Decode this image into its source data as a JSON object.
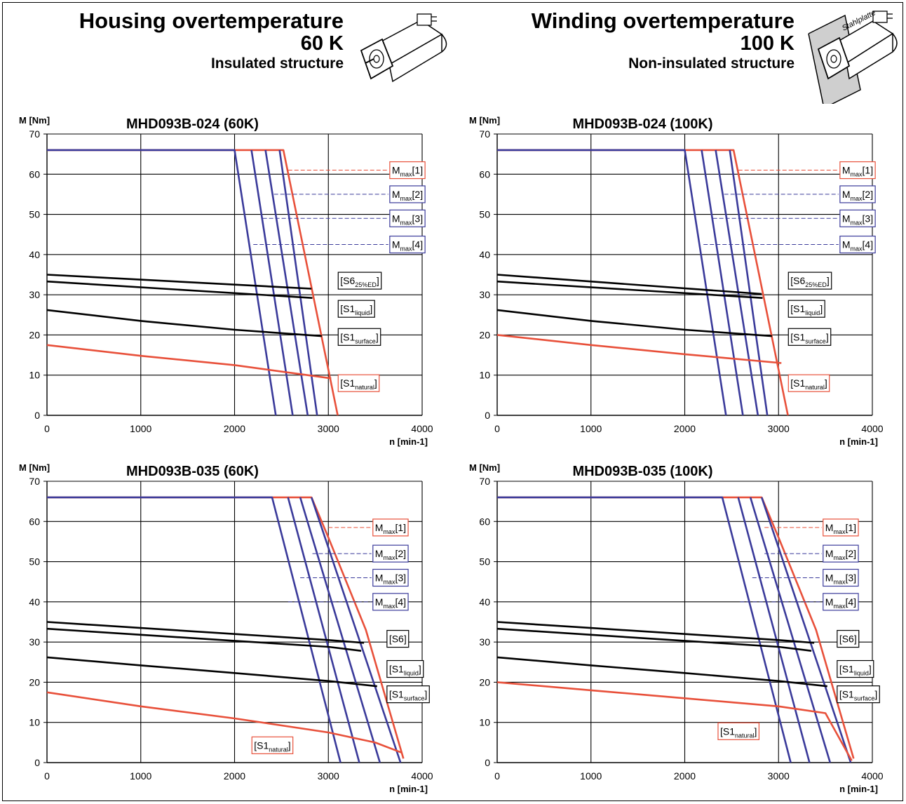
{
  "headers": {
    "left": {
      "title": "Housing overtemperature",
      "value": "60 K",
      "subtitle": "Insulated structure"
    },
    "right": {
      "title": "Winding overtemperature",
      "value": "100 K",
      "subtitle": "Non-insulated structure",
      "plate_label": "Stahlplatte"
    }
  },
  "colors": {
    "red": "#e8503a",
    "blue": "#3a3a9a",
    "black": "#000000",
    "grid": "#000000"
  },
  "chart_data": [
    {
      "type": "line",
      "title": "MHD093B-024 (60K)",
      "ylabel": "M [Nm]",
      "xlabel": "n [min-1]",
      "xlim": [
        0,
        4000
      ],
      "ylim": [
        0,
        70
      ],
      "xticks": [
        "0",
        "1000",
        "2000",
        "3000",
        "4000"
      ],
      "yticks": [
        "0",
        "10",
        "20",
        "30",
        "40",
        "50",
        "60",
        "70"
      ],
      "grid": true,
      "series": [
        {
          "color": "red",
          "points": [
            [
              0,
              66
            ],
            [
              2520,
              66
            ],
            [
              3100,
              0
            ]
          ]
        },
        {
          "color": "blue",
          "points": [
            [
              0,
              66
            ],
            [
              2000,
              66
            ],
            [
              2440,
              0
            ]
          ]
        },
        {
          "color": "blue",
          "points": [
            [
              2180,
              66
            ],
            [
              2620,
              0
            ]
          ]
        },
        {
          "color": "blue",
          "points": [
            [
              2330,
              66
            ],
            [
              2780,
              0
            ]
          ]
        },
        {
          "color": "blue",
          "points": [
            [
              2480,
              66
            ],
            [
              2880,
              0
            ]
          ]
        },
        {
          "color": "black",
          "points": [
            [
              0,
              35
            ],
            [
              2820,
              31.5
            ]
          ]
        },
        {
          "color": "black",
          "points": [
            [
              0,
              33.3
            ],
            [
              2830,
              29.2
            ]
          ]
        },
        {
          "color": "black",
          "points": [
            [
              0,
              26.2
            ],
            [
              1000,
              23.5
            ],
            [
              2000,
              21.3
            ],
            [
              2930,
              19.7
            ]
          ]
        },
        {
          "color": "red",
          "points": [
            [
              0,
              17.5
            ],
            [
              1000,
              14.8
            ],
            [
              2000,
              12.5
            ],
            [
              3030,
              9.2
            ]
          ]
        }
      ],
      "labels": [
        {
          "main": "M",
          "sub": "max",
          "suffix": "[1]",
          "color": "red",
          "x": 3640,
          "y": 61,
          "lead_from": 2570,
          "lead_y": 61
        },
        {
          "main": "M",
          "sub": "max",
          "suffix": "[2]",
          "color": "blue",
          "x": 3640,
          "y": 55,
          "lead_from": 2420,
          "lead_y": 55
        },
        {
          "main": "M",
          "sub": "max",
          "suffix": "[3]",
          "color": "blue",
          "x": 3640,
          "y": 49,
          "lead_from": 2300,
          "lead_y": 49
        },
        {
          "main": "M",
          "sub": "max",
          "suffix": "[4]",
          "color": "blue",
          "x": 3640,
          "y": 42.5,
          "lead_from": 2200,
          "lead_y": 42.5
        },
        {
          "main": "[S6",
          "sub": "25%ED",
          "suffix": "]",
          "color": "black",
          "x": 3090,
          "y": 33.5
        },
        {
          "main": "[S1",
          "sub": "liquid",
          "suffix": "]",
          "color": "black",
          "x": 3090,
          "y": 26.5
        },
        {
          "main": "[S1",
          "sub": "surface",
          "suffix": "]",
          "color": "black",
          "x": 3090,
          "y": 19.5
        },
        {
          "main": "[S1",
          "sub": "natural",
          "suffix": "]",
          "color": "red",
          "x": 3090,
          "y": 8
        }
      ]
    },
    {
      "type": "line",
      "title": "MHD093B-024 (100K)",
      "ylabel": "M [Nm]",
      "xlabel": "n [min-1]",
      "xlim": [
        0,
        4000
      ],
      "ylim": [
        0,
        70
      ],
      "xticks": [
        "0",
        "1000",
        "2000",
        "3000",
        "4000"
      ],
      "yticks": [
        "0",
        "10",
        "20",
        "30",
        "40",
        "50",
        "60",
        "70"
      ],
      "grid": true,
      "series": [
        {
          "color": "red",
          "points": [
            [
              0,
              66
            ],
            [
              2520,
              66
            ],
            [
              3100,
              0
            ]
          ]
        },
        {
          "color": "blue",
          "points": [
            [
              0,
              66
            ],
            [
              2000,
              66
            ],
            [
              2440,
              0
            ]
          ]
        },
        {
          "color": "blue",
          "points": [
            [
              2180,
              66
            ],
            [
              2620,
              0
            ]
          ]
        },
        {
          "color": "blue",
          "points": [
            [
              2330,
              66
            ],
            [
              2780,
              0
            ]
          ]
        },
        {
          "color": "blue",
          "points": [
            [
              2480,
              66
            ],
            [
              2880,
              0
            ]
          ]
        },
        {
          "color": "black",
          "points": [
            [
              0,
              35
            ],
            [
              2820,
              30.2
            ]
          ]
        },
        {
          "color": "black",
          "points": [
            [
              0,
              33.3
            ],
            [
              2830,
              29.2
            ]
          ]
        },
        {
          "color": "black",
          "points": [
            [
              0,
              26.2
            ],
            [
              1000,
              23.5
            ],
            [
              2000,
              21.3
            ],
            [
              2930,
              19.7
            ]
          ]
        },
        {
          "color": "red",
          "points": [
            [
              0,
              20
            ],
            [
              1000,
              17.5
            ],
            [
              2000,
              15.2
            ],
            [
              3030,
              13
            ]
          ]
        }
      ],
      "labels": [
        {
          "main": "M",
          "sub": "max",
          "suffix": "[1]",
          "color": "red",
          "x": 3640,
          "y": 61,
          "lead_from": 2570,
          "lead_y": 61
        },
        {
          "main": "M",
          "sub": "max",
          "suffix": "[2]",
          "color": "blue",
          "x": 3640,
          "y": 55,
          "lead_from": 2420,
          "lead_y": 55
        },
        {
          "main": "M",
          "sub": "max",
          "suffix": "[3]",
          "color": "blue",
          "x": 3640,
          "y": 49,
          "lead_from": 2300,
          "lead_y": 49
        },
        {
          "main": "M",
          "sub": "max",
          "suffix": "[4]",
          "color": "blue",
          "x": 3640,
          "y": 42.5,
          "lead_from": 2200,
          "lead_y": 42.5
        },
        {
          "main": "[S6",
          "sub": "25%ED",
          "suffix": "]",
          "color": "black",
          "x": 3090,
          "y": 33.5
        },
        {
          "main": "[S1",
          "sub": "liquid",
          "suffix": "]",
          "color": "black",
          "x": 3090,
          "y": 26.5
        },
        {
          "main": "[S1",
          "sub": "surface",
          "suffix": "]",
          "color": "black",
          "x": 3090,
          "y": 19.5
        },
        {
          "main": "[S1",
          "sub": "natural",
          "suffix": "]",
          "color": "red",
          "x": 3090,
          "y": 8
        }
      ]
    },
    {
      "type": "line",
      "title": "MHD093B-035 (60K)",
      "ylabel": "M [Nm]",
      "xlabel": "n [min-1]",
      "xlim": [
        0,
        4000
      ],
      "ylim": [
        0,
        70
      ],
      "xticks": [
        "0",
        "1000",
        "2000",
        "3000",
        "4000"
      ],
      "yticks": [
        "0",
        "10",
        "20",
        "30",
        "40",
        "50",
        "60",
        "70"
      ],
      "grid": true,
      "series": [
        {
          "color": "red",
          "points": [
            [
              0,
              66
            ],
            [
              2820,
              66
            ],
            [
              3000,
              56
            ],
            [
              3400,
              33
            ],
            [
              3800,
              1
            ]
          ]
        },
        {
          "color": "blue",
          "points": [
            [
              0,
              66
            ],
            [
              2400,
              66
            ],
            [
              3130,
              0
            ]
          ]
        },
        {
          "color": "blue",
          "points": [
            [
              2570,
              66
            ],
            [
              3330,
              0
            ]
          ]
        },
        {
          "color": "blue",
          "points": [
            [
              2700,
              66
            ],
            [
              3550,
              0
            ]
          ]
        },
        {
          "color": "blue",
          "points": [
            [
              2820,
              66
            ],
            [
              3770,
              0
            ]
          ]
        },
        {
          "color": "black",
          "points": [
            [
              0,
              35
            ],
            [
              1000,
              33.5
            ],
            [
              2000,
              32
            ],
            [
              3000,
              30.5
            ],
            [
              3380,
              29.8
            ]
          ]
        },
        {
          "color": "black",
          "points": [
            [
              0,
              33.3
            ],
            [
              1000,
              31.8
            ],
            [
              2000,
              30.3
            ],
            [
              3000,
              28.8
            ],
            [
              3350,
              27.8
            ]
          ]
        },
        {
          "color": "black",
          "points": [
            [
              0,
              26.2
            ],
            [
              1000,
              24.2
            ],
            [
              2000,
              22.3
            ],
            [
              3000,
              20.3
            ],
            [
              3520,
              19
            ]
          ]
        },
        {
          "color": "red",
          "points": [
            [
              0,
              17.5
            ],
            [
              1000,
              14
            ],
            [
              2000,
              11
            ],
            [
              3000,
              7.5
            ],
            [
              3500,
              5
            ],
            [
              3780,
              2.5
            ]
          ]
        }
      ],
      "labels": [
        {
          "main": "M",
          "sub": "max",
          "suffix": "[1]",
          "color": "red",
          "x": 3460,
          "y": 58.5,
          "lead_from": 3000,
          "lead_y": 58.5
        },
        {
          "main": "M",
          "sub": "max",
          "suffix": "[2]",
          "color": "blue",
          "x": 3460,
          "y": 52,
          "lead_from": 2830,
          "lead_y": 52
        },
        {
          "main": "M",
          "sub": "max",
          "suffix": "[3]",
          "color": "blue",
          "x": 3460,
          "y": 46,
          "lead_from": 2700,
          "lead_y": 46
        },
        {
          "main": "M",
          "sub": "max",
          "suffix": "[4]",
          "color": "blue",
          "x": 3460,
          "y": 40,
          "lead_from": 2570,
          "lead_y": 40
        },
        {
          "main": "[S6",
          "sub": "",
          "suffix": "]",
          "color": "black",
          "x": 3610,
          "y": 30.8
        },
        {
          "main": "[S1",
          "sub": "liquid",
          "suffix": "]",
          "color": "black",
          "x": 3610,
          "y": 23.3
        },
        {
          "main": "[S1",
          "sub": "surface",
          "suffix": "]",
          "color": "black",
          "x": 3610,
          "y": 17
        },
        {
          "main": "[S1",
          "sub": "natural",
          "suffix": "]",
          "color": "red",
          "x": 2170,
          "y": 4.3
        }
      ]
    },
    {
      "type": "line",
      "title": "MHD093B-035 (100K)",
      "ylabel": "M [Nm]",
      "xlabel": "n [min-1]",
      "xlim": [
        0,
        4000
      ],
      "ylim": [
        0,
        70
      ],
      "xticks": [
        "0",
        "1000",
        "2000",
        "3000",
        "4000"
      ],
      "yticks": [
        "0",
        "10",
        "20",
        "30",
        "40",
        "50",
        "60",
        "70"
      ],
      "grid": true,
      "series": [
        {
          "color": "red",
          "points": [
            [
              0,
              66
            ],
            [
              2820,
              66
            ],
            [
              3000,
              56
            ],
            [
              3400,
              33
            ],
            [
              3800,
              1
            ]
          ]
        },
        {
          "color": "blue",
          "points": [
            [
              0,
              66
            ],
            [
              2400,
              66
            ],
            [
              3130,
              0
            ]
          ]
        },
        {
          "color": "blue",
          "points": [
            [
              2570,
              66
            ],
            [
              3330,
              0
            ]
          ]
        },
        {
          "color": "blue",
          "points": [
            [
              2700,
              66
            ],
            [
              3550,
              0
            ]
          ]
        },
        {
          "color": "blue",
          "points": [
            [
              2820,
              66
            ],
            [
              3770,
              0
            ]
          ]
        },
        {
          "color": "black",
          "points": [
            [
              0,
              35
            ],
            [
              1000,
              33.5
            ],
            [
              2000,
              32
            ],
            [
              3000,
              30.5
            ],
            [
              3380,
              29.8
            ]
          ]
        },
        {
          "color": "black",
          "points": [
            [
              0,
              33.3
            ],
            [
              1000,
              31.8
            ],
            [
              2000,
              30.3
            ],
            [
              3000,
              28.8
            ],
            [
              3350,
              27.8
            ]
          ]
        },
        {
          "color": "black",
          "points": [
            [
              0,
              26.2
            ],
            [
              1000,
              24.2
            ],
            [
              2000,
              22.3
            ],
            [
              3000,
              20.3
            ],
            [
              3520,
              19
            ]
          ]
        },
        {
          "color": "red",
          "points": [
            [
              0,
              20
            ],
            [
              1000,
              18
            ],
            [
              2000,
              16
            ],
            [
              3000,
              14
            ],
            [
              3500,
              12.3
            ],
            [
              3780,
              0.5
            ]
          ]
        }
      ],
      "labels": [
        {
          "main": "M",
          "sub": "max",
          "suffix": "[1]",
          "color": "red",
          "x": 3460,
          "y": 58.5,
          "lead_from": 2850,
          "lead_y": 58.5
        },
        {
          "main": "M",
          "sub": "max",
          "suffix": "[2]",
          "color": "blue",
          "x": 3460,
          "y": 52,
          "lead_from": 2850,
          "lead_y": 52
        },
        {
          "main": "M",
          "sub": "max",
          "suffix": "[3]",
          "color": "blue",
          "x": 3460,
          "y": 46,
          "lead_from": 2720,
          "lead_y": 46
        },
        {
          "main": "M",
          "sub": "max",
          "suffix": "[4]",
          "color": "blue",
          "x": 3460,
          "y": 40,
          "lead_from": 2590,
          "lead_y": 40
        },
        {
          "main": "[S6",
          "sub": "",
          "suffix": "]",
          "color": "black",
          "x": 3610,
          "y": 30.8
        },
        {
          "main": "[S1",
          "sub": "liquid",
          "suffix": "]",
          "color": "black",
          "x": 3610,
          "y": 23.3
        },
        {
          "main": "[S1",
          "sub": "surface",
          "suffix": "]",
          "color": "black",
          "x": 3610,
          "y": 17
        },
        {
          "main": "[S1",
          "sub": "natural",
          "suffix": "]",
          "color": "red",
          "x": 2340,
          "y": 7.8
        }
      ]
    }
  ]
}
